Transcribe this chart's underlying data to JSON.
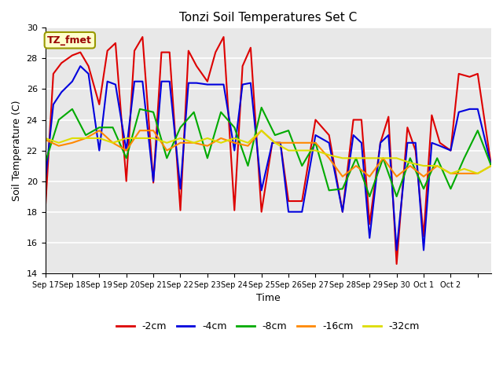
{
  "title": "Tonzi Soil Temperatures Set C",
  "xlabel": "Time",
  "ylabel": "Soil Temperature (C)",
  "ylim": [
    14,
    30
  ],
  "background_color": "#e8e8e8",
  "annotation_text": "TZ_fmet",
  "annotation_bg": "#ffffcc",
  "annotation_border": "#999900",
  "series": {
    "-2cm": {
      "color": "#dd0000",
      "x": [
        0.0,
        0.3,
        0.6,
        1.0,
        1.3,
        1.6,
        2.0,
        2.3,
        2.6,
        3.0,
        3.3,
        3.6,
        4.0,
        4.3,
        4.6,
        5.0,
        5.3,
        5.6,
        6.0,
        6.3,
        6.6,
        7.0,
        7.3,
        7.6,
        8.0,
        8.4,
        8.7,
        9.0,
        9.5,
        10.0,
        10.5,
        11.0,
        11.4,
        11.7,
        12.0,
        12.4,
        12.7,
        13.0,
        13.4,
        13.7,
        14.0,
        14.3,
        14.6,
        15.0,
        15.3,
        15.7,
        16.0,
        16.5
      ],
      "y": [
        18.1,
        27.0,
        27.7,
        28.2,
        28.4,
        27.5,
        25.0,
        28.5,
        29.0,
        20.0,
        28.5,
        29.4,
        19.9,
        28.4,
        28.4,
        18.1,
        28.5,
        27.5,
        26.5,
        28.4,
        29.4,
        18.1,
        27.5,
        28.7,
        18.0,
        22.5,
        22.5,
        18.7,
        18.7,
        24.0,
        23.0,
        18.0,
        24.0,
        24.0,
        17.2,
        22.5,
        24.2,
        14.6,
        23.5,
        22.0,
        16.4,
        24.3,
        22.5,
        22.0,
        27.0,
        26.8,
        27.0,
        21.0
      ]
    },
    "-4cm": {
      "color": "#0000dd",
      "x": [
        0.0,
        0.3,
        0.6,
        1.0,
        1.3,
        1.6,
        2.0,
        2.3,
        2.6,
        3.0,
        3.3,
        3.6,
        4.0,
        4.3,
        4.6,
        5.0,
        5.3,
        5.6,
        6.0,
        6.3,
        6.6,
        7.0,
        7.3,
        7.6,
        8.0,
        8.4,
        8.7,
        9.0,
        9.5,
        10.0,
        10.5,
        11.0,
        11.4,
        11.7,
        12.0,
        12.4,
        12.7,
        13.0,
        13.4,
        13.7,
        14.0,
        14.3,
        14.6,
        15.0,
        15.3,
        15.7,
        16.0,
        16.5
      ],
      "y": [
        20.0,
        25.0,
        25.8,
        26.5,
        27.5,
        27.0,
        22.0,
        26.5,
        26.3,
        22.0,
        26.5,
        26.5,
        20.0,
        26.5,
        26.5,
        19.5,
        26.4,
        26.4,
        26.3,
        26.3,
        26.3,
        22.0,
        26.3,
        26.4,
        19.4,
        22.5,
        22.5,
        18.0,
        18.0,
        23.0,
        22.5,
        18.0,
        23.0,
        22.5,
        16.3,
        22.5,
        23.0,
        15.5,
        22.5,
        22.5,
        15.5,
        22.5,
        22.3,
        22.0,
        24.5,
        24.7,
        24.7,
        21.0
      ]
    },
    "-8cm": {
      "color": "#00aa00",
      "x": [
        0.0,
        0.5,
        1.0,
        1.5,
        2.0,
        2.5,
        3.0,
        3.5,
        4.0,
        4.5,
        5.0,
        5.5,
        6.0,
        6.5,
        7.0,
        7.5,
        8.0,
        8.5,
        9.0,
        9.5,
        10.0,
        10.5,
        11.0,
        11.5,
        12.0,
        12.5,
        13.0,
        13.5,
        14.0,
        14.5,
        15.0,
        15.5,
        16.0,
        16.5
      ],
      "y": [
        21.2,
        24.0,
        24.7,
        23.0,
        23.5,
        23.5,
        21.5,
        24.7,
        24.5,
        21.5,
        23.5,
        24.5,
        21.5,
        24.5,
        23.5,
        21.0,
        24.8,
        23.0,
        23.3,
        21.0,
        22.5,
        19.4,
        19.5,
        21.5,
        19.0,
        21.5,
        19.0,
        21.5,
        19.5,
        21.5,
        19.5,
        21.5,
        23.3,
        21.0
      ]
    },
    "-16cm": {
      "color": "#ff8800",
      "x": [
        0.0,
        0.5,
        1.0,
        1.5,
        2.0,
        2.5,
        3.0,
        3.5,
        4.0,
        4.5,
        5.0,
        5.5,
        6.0,
        6.5,
        7.0,
        7.5,
        8.0,
        8.5,
        9.0,
        9.5,
        10.0,
        10.5,
        11.0,
        11.5,
        12.0,
        12.5,
        13.0,
        13.5,
        14.0,
        14.5,
        15.0,
        15.5,
        16.0,
        16.5
      ],
      "y": [
        22.7,
        22.3,
        22.5,
        22.8,
        23.3,
        22.5,
        22.0,
        23.3,
        23.3,
        22.0,
        22.5,
        22.5,
        22.3,
        22.8,
        22.5,
        22.3,
        23.3,
        22.5,
        22.5,
        22.5,
        22.5,
        21.5,
        20.3,
        21.0,
        20.3,
        21.5,
        20.3,
        21.0,
        20.3,
        21.0,
        20.5,
        20.5,
        20.5,
        21.0
      ]
    },
    "-32cm": {
      "color": "#dddd00",
      "x": [
        0.0,
        0.5,
        1.0,
        1.5,
        2.0,
        2.5,
        3.0,
        3.5,
        4.0,
        4.5,
        5.0,
        5.5,
        6.0,
        6.5,
        7.0,
        7.5,
        8.0,
        8.5,
        9.0,
        9.5,
        10.0,
        10.5,
        11.0,
        11.5,
        12.0,
        12.5,
        13.0,
        13.5,
        14.0,
        14.5,
        15.0,
        15.5,
        16.0,
        16.5
      ],
      "y": [
        22.8,
        22.5,
        22.8,
        22.8,
        22.8,
        22.5,
        22.8,
        22.8,
        22.8,
        22.5,
        22.8,
        22.5,
        22.8,
        22.5,
        22.8,
        22.5,
        23.3,
        22.5,
        22.0,
        22.0,
        22.0,
        21.7,
        21.5,
        21.5,
        21.5,
        21.5,
        21.5,
        21.2,
        21.0,
        21.0,
        20.5,
        20.8,
        20.5,
        21.0
      ]
    }
  },
  "xtick_positions": [
    0,
    1,
    2,
    3,
    4,
    5,
    6,
    7,
    8,
    9,
    10,
    11,
    12,
    13,
    14,
    15,
    16
  ],
  "xtick_labels": [
    "Sep 17",
    "Sep 18",
    "Sep 19",
    "Sep 20",
    "Sep 21",
    "Sep 22",
    "Sep 23",
    "Sep 24",
    "Sep 25",
    "Sep 26",
    "Sep 27",
    "Sep 28",
    "Sep 29",
    "Sep 30",
    "Oct 1",
    "Oct 2",
    ""
  ],
  "ytick_positions": [
    14,
    16,
    18,
    20,
    22,
    24,
    26,
    28,
    30
  ],
  "legend_labels": [
    "-2cm",
    "-4cm",
    "-8cm",
    "-16cm",
    "-32cm"
  ],
  "legend_colors": [
    "#dd0000",
    "#0000dd",
    "#00aa00",
    "#ff8800",
    "#dddd00"
  ]
}
